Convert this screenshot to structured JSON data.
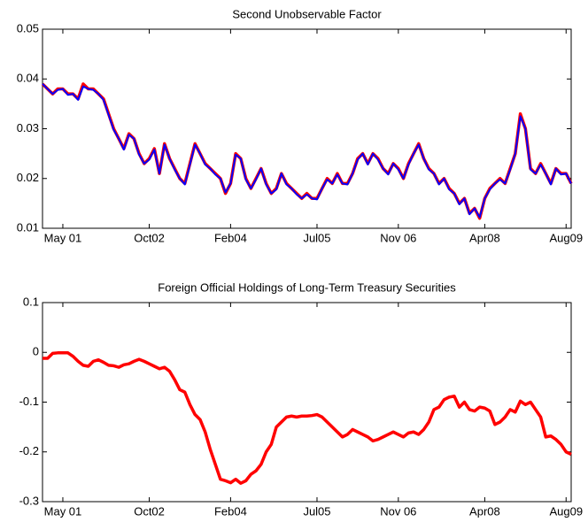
{
  "chart_data": [
    {
      "type": "line",
      "title": "Second Unobservable Factor",
      "categories": [
        null,
        null,
        null,
        null,
        "May 01",
        null,
        null,
        null,
        null,
        null,
        null,
        null,
        null,
        null,
        null,
        null,
        null,
        null,
        null,
        null,
        null,
        "Oct02",
        null,
        null,
        null,
        null,
        null,
        null,
        null,
        null,
        null,
        null,
        null,
        null,
        null,
        null,
        null,
        "Feb04",
        null,
        null,
        null,
        null,
        null,
        null,
        null,
        null,
        null,
        null,
        null,
        null,
        null,
        null,
        null,
        null,
        "Jul05",
        null,
        null,
        null,
        null,
        null,
        null,
        null,
        null,
        null,
        null,
        null,
        null,
        null,
        null,
        null,
        "Nov 06",
        null,
        null,
        null,
        null,
        null,
        null,
        null,
        null,
        null,
        null,
        null,
        null,
        null,
        null,
        null,
        null,
        "Apr08",
        null,
        null,
        null,
        null,
        null,
        null,
        null,
        null,
        null,
        null,
        null,
        null,
        null,
        null,
        null,
        "Aug09",
        null
      ],
      "series": [
        {
          "color": "#ff0000",
          "values": [
            0.039,
            0.038,
            0.037,
            0.038,
            0.038,
            0.037,
            0.037,
            0.036,
            0.039,
            0.038,
            0.038,
            0.037,
            0.036,
            0.033,
            0.03,
            0.028,
            0.026,
            0.029,
            0.028,
            0.025,
            0.023,
            0.024,
            0.026,
            0.021,
            0.027,
            0.024,
            0.022,
            0.02,
            0.019,
            0.023,
            0.027,
            0.025,
            0.023,
            0.022,
            0.021,
            0.02,
            0.017,
            0.019,
            0.025,
            0.024,
            0.02,
            0.018,
            0.02,
            0.022,
            0.019,
            0.017,
            0.018,
            0.021,
            0.019,
            0.018,
            0.017,
            0.016,
            0.017,
            0.016,
            0.016,
            0.018,
            0.02,
            0.019,
            0.021,
            0.019,
            0.019,
            0.021,
            0.024,
            0.025,
            0.023,
            0.025,
            0.024,
            0.022,
            0.021,
            0.023,
            0.022,
            0.02,
            0.023,
            0.025,
            0.027,
            0.024,
            0.022,
            0.021,
            0.019,
            0.02,
            0.018,
            0.017,
            0.015,
            0.016,
            0.013,
            0.014,
            0.012,
            0.016,
            0.018,
            0.019,
            0.02,
            0.019,
            0.022,
            0.025,
            0.033,
            0.03,
            0.022,
            0.021,
            0.023,
            0.021,
            0.019,
            0.022,
            0.021,
            0.021,
            0.019
          ]
        },
        {
          "color": "#0000ff",
          "values": [
            0.039,
            0.038,
            0.037,
            0.0378,
            0.038,
            0.0368,
            0.037,
            0.0358,
            0.0385,
            0.038,
            0.0378,
            0.037,
            0.0358,
            0.0328,
            0.0298,
            0.028,
            0.0258,
            0.0288,
            0.028,
            0.0248,
            0.023,
            0.0238,
            0.0258,
            0.021,
            0.0268,
            0.024,
            0.0218,
            0.02,
            0.0188,
            0.0228,
            0.0268,
            0.025,
            0.0228,
            0.022,
            0.0208,
            0.02,
            0.0172,
            0.019,
            0.0248,
            0.024,
            0.0198,
            0.018,
            0.0198,
            0.022,
            0.0188,
            0.017,
            0.0178,
            0.021,
            0.0188,
            0.018,
            0.0168,
            0.016,
            0.0168,
            0.016,
            0.0158,
            0.018,
            0.0198,
            0.019,
            0.0208,
            0.019,
            0.0188,
            0.021,
            0.0238,
            0.025,
            0.0228,
            0.025,
            0.0238,
            0.022,
            0.0208,
            0.023,
            0.0218,
            0.02,
            0.0228,
            0.025,
            0.0268,
            0.024,
            0.0218,
            0.021,
            0.0188,
            0.02,
            0.0178,
            0.017,
            0.0148,
            0.016,
            0.0128,
            0.014,
            0.0122,
            0.016,
            0.0178,
            0.019,
            0.0198,
            0.019,
            0.0218,
            0.025,
            0.0325,
            0.03,
            0.0218,
            0.021,
            0.0228,
            0.021,
            0.0188,
            0.022,
            0.0208,
            0.021,
            0.019
          ]
        }
      ],
      "ylim": [
        0.01,
        0.05
      ],
      "yticks": [
        0.01,
        0.02,
        0.03,
        0.04,
        0.05
      ]
    },
    {
      "type": "line",
      "title": "Foreign Official Holdings of Long-Term Treasury Securities",
      "categories": [
        null,
        null,
        null,
        null,
        "May 01",
        null,
        null,
        null,
        null,
        null,
        null,
        null,
        null,
        null,
        null,
        null,
        null,
        null,
        null,
        null,
        null,
        "Oct02",
        null,
        null,
        null,
        null,
        null,
        null,
        null,
        null,
        null,
        null,
        null,
        null,
        null,
        null,
        null,
        "Feb04",
        null,
        null,
        null,
        null,
        null,
        null,
        null,
        null,
        null,
        null,
        null,
        null,
        null,
        null,
        null,
        null,
        "Jul05",
        null,
        null,
        null,
        null,
        null,
        null,
        null,
        null,
        null,
        null,
        null,
        null,
        null,
        null,
        null,
        "Nov 06",
        null,
        null,
        null,
        null,
        null,
        null,
        null,
        null,
        null,
        null,
        null,
        null,
        null,
        null,
        null,
        null,
        "Apr08",
        null,
        null,
        null,
        null,
        null,
        null,
        null,
        null,
        null,
        null,
        null,
        null,
        null,
        null,
        null,
        "Aug09",
        null
      ],
      "series": [
        {
          "color": "#ff0000",
          "values": [
            -0.012,
            -0.012,
            -0.002,
            -0.001,
            -0.001,
            -0.001,
            -0.008,
            -0.018,
            -0.026,
            -0.028,
            -0.018,
            -0.015,
            -0.02,
            -0.026,
            -0.027,
            -0.03,
            -0.025,
            -0.023,
            -0.018,
            -0.014,
            -0.018,
            -0.023,
            -0.028,
            -0.033,
            -0.03,
            -0.038,
            -0.055,
            -0.075,
            -0.08,
            -0.105,
            -0.125,
            -0.135,
            -0.16,
            -0.195,
            -0.225,
            -0.255,
            -0.258,
            -0.262,
            -0.255,
            -0.263,
            -0.258,
            -0.245,
            -0.238,
            -0.225,
            -0.2,
            -0.185,
            -0.15,
            -0.14,
            -0.13,
            -0.128,
            -0.13,
            -0.128,
            -0.128,
            -0.127,
            -0.125,
            -0.13,
            -0.14,
            -0.15,
            -0.16,
            -0.17,
            -0.165,
            -0.155,
            -0.16,
            -0.165,
            -0.17,
            -0.178,
            -0.175,
            -0.17,
            -0.165,
            -0.16,
            -0.165,
            -0.17,
            -0.162,
            -0.16,
            -0.165,
            -0.155,
            -0.14,
            -0.115,
            -0.11,
            -0.095,
            -0.09,
            -0.088,
            -0.11,
            -0.1,
            -0.115,
            -0.118,
            -0.11,
            -0.112,
            -0.118,
            -0.145,
            -0.14,
            -0.13,
            -0.115,
            -0.12,
            -0.098,
            -0.105,
            -0.1,
            -0.115,
            -0.13,
            -0.17,
            -0.168,
            -0.175,
            -0.185,
            -0.2,
            -0.205
          ]
        }
      ],
      "ylim": [
        -0.3,
        0.1
      ],
      "yticks": [
        -0.3,
        -0.2,
        -0.1,
        0,
        0.1
      ]
    }
  ]
}
